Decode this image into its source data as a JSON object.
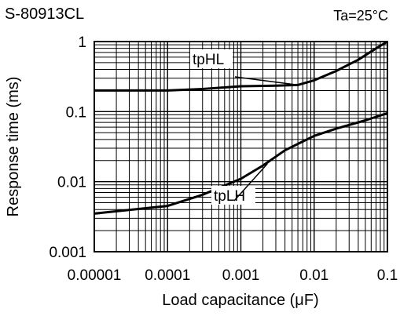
{
  "chart_data": {
    "type": "line",
    "title": "S-80913CL",
    "condition": "Ta=25°C",
    "xlabel": "Load capacitance (μF)",
    "ylabel": "Response time (ms)",
    "xscale": "log",
    "yscale": "log",
    "xlim": [
      1e-05,
      0.1
    ],
    "ylim": [
      0.001,
      1
    ],
    "grid": true,
    "x_ticks": [
      {
        "value": 1e-05,
        "label": "0.00001"
      },
      {
        "value": 0.0001,
        "label": "0.0001"
      },
      {
        "value": 0.001,
        "label": "0.001"
      },
      {
        "value": 0.01,
        "label": "0.01"
      },
      {
        "value": 0.1,
        "label": "0.1"
      }
    ],
    "y_ticks": [
      {
        "value": 0.001,
        "label": "0.001"
      },
      {
        "value": 0.01,
        "label": "0.01"
      },
      {
        "value": 0.1,
        "label": "0.1"
      },
      {
        "value": 1,
        "label": "1"
      }
    ],
    "series": [
      {
        "name": "tpHL",
        "points": [
          [
            1e-05,
            0.2
          ],
          [
            0.0001,
            0.2
          ],
          [
            0.0003,
            0.21
          ],
          [
            0.001,
            0.23
          ],
          [
            0.003,
            0.235
          ],
          [
            0.006,
            0.24
          ],
          [
            0.01,
            0.28
          ],
          [
            0.02,
            0.38
          ],
          [
            0.04,
            0.55
          ],
          [
            0.07,
            0.8
          ],
          [
            0.1,
            1.0
          ]
        ]
      },
      {
        "name": "tpLH",
        "points": [
          [
            1e-05,
            0.0035
          ],
          [
            0.0001,
            0.0045
          ],
          [
            0.0003,
            0.0065
          ],
          [
            0.001,
            0.011
          ],
          [
            0.002,
            0.017
          ],
          [
            0.004,
            0.028
          ],
          [
            0.01,
            0.045
          ],
          [
            0.02,
            0.057
          ],
          [
            0.05,
            0.075
          ],
          [
            0.1,
            0.095
          ]
        ]
      }
    ],
    "annotations": [
      {
        "text": "tpHL",
        "series": "tpHL"
      },
      {
        "text": "tpLH",
        "series": "tpLH"
      }
    ]
  }
}
